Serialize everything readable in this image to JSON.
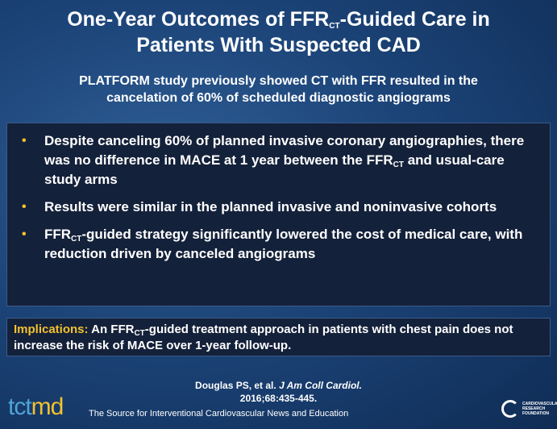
{
  "slide": {
    "title_line1_pre": "One-Year Outcomes of FFR",
    "title_line1_sub": "CT",
    "title_line1_post": "-Guided Care in",
    "title_line2": "Patients With Suspected CAD",
    "subtitle_line1": "PLATFORM study previously showed CT with FFR resulted in the",
    "subtitle_line2": "cancelation of 60% of scheduled diagnostic angiograms"
  },
  "bullets": {
    "b1_pre": "Despite canceling 60% of planned invasive coronary angiographies, there was no difference in MACE at 1 year between the FFR",
    "b1_sub": "CT",
    "b1_post": " and usual-care study arms",
    "b2": "Results were similar in the planned invasive and noninvasive cohorts",
    "b3_pre": "FFR",
    "b3_sub": "CT",
    "b3_post": "-guided strategy significantly lowered the cost of medical care, with reduction driven by canceled angiograms",
    "dot": "•"
  },
  "implications": {
    "label": "Implications:",
    "pre": " An FFR",
    "sub": "CT",
    "post": "-guided treatment approach in patients with chest pain does not increase the risk of MACE over 1-year follow-up."
  },
  "citation": {
    "authors": "Douglas PS, et al. ",
    "journal": "J Am Coll Cardiol.",
    "detail": "2016;68:435-445."
  },
  "footer": {
    "logo_tct": "tct",
    "logo_md": "md",
    "tagline": "The Source for Interventional Cardiovascular News and Education",
    "crf_text": "CARDIOVASCULAR RESEARCH FOUNDATION"
  },
  "colors": {
    "accent": "#f2c12e",
    "box_bg": "#14213a",
    "bg": "#1c4478"
  }
}
